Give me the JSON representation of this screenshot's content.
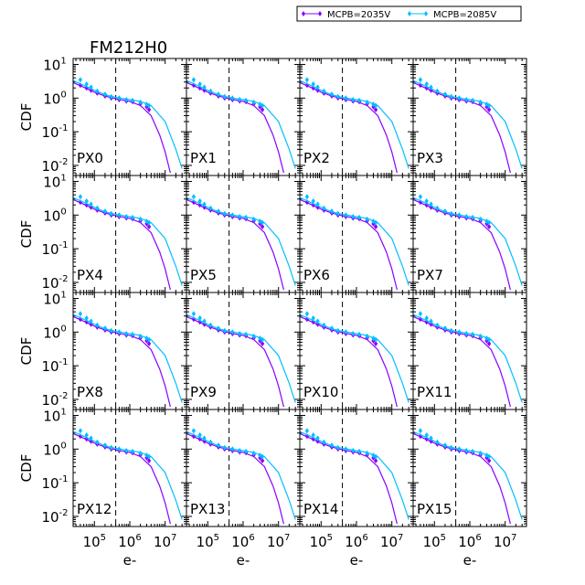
{
  "chart_data": {
    "type": "scatter",
    "title": "FM212H0",
    "xlabel": "e-",
    "ylabel": "CDF",
    "xscale": "log",
    "yscale": "log",
    "xlim": [
      25000,
      40000000
    ],
    "ylim": [
      0.005,
      15
    ],
    "x_ticks": [
      {
        "value": 100000,
        "base": "10",
        "exp": "5"
      },
      {
        "value": 1000000,
        "base": "10",
        "exp": "6"
      },
      {
        "value": 10000000,
        "base": "10",
        "exp": "7"
      }
    ],
    "y_ticks": [
      {
        "value": 10,
        "base": "10",
        "exp": "1"
      },
      {
        "value": 1,
        "base": "10",
        "exp": "0"
      },
      {
        "value": 0.1,
        "base": "10",
        "exp": "-1"
      },
      {
        "value": 0.01,
        "base": "10",
        "exp": "-2"
      }
    ],
    "vertical_line_x": 400000,
    "legend": {
      "placement": "top-right",
      "entries": [
        {
          "label": "MCPB=2035V",
          "color": "#8a00ff"
        },
        {
          "label": "MCPB=2085V",
          "color": "#00bfff"
        }
      ]
    },
    "series": [
      {
        "name": "MCPB=2035V",
        "color": "#8a00ff",
        "points": [
          {
            "x": 40000,
            "y": 2.4
          },
          {
            "x": 60000,
            "y": 2.0
          },
          {
            "x": 80000,
            "y": 1.7
          },
          {
            "x": 120000,
            "y": 1.4
          },
          {
            "x": 200000,
            "y": 1.15
          },
          {
            "x": 300000,
            "y": 1.0
          },
          {
            "x": 500000,
            "y": 0.9
          },
          {
            "x": 800000,
            "y": 0.82
          },
          {
            "x": 1200000,
            "y": 0.78
          },
          {
            "x": 2000000,
            "y": 0.68
          },
          {
            "x": 3000000,
            "y": 0.55
          },
          {
            "x": 3500000,
            "y": 0.45
          }
        ],
        "fit": [
          {
            "x": 25000,
            "y": 2.9
          },
          {
            "x": 50000,
            "y": 2.1
          },
          {
            "x": 100000,
            "y": 1.5
          },
          {
            "x": 200000,
            "y": 1.15
          },
          {
            "x": 400000,
            "y": 0.95
          },
          {
            "x": 1000000,
            "y": 0.8
          },
          {
            "x": 2000000,
            "y": 0.6
          },
          {
            "x": 4000000,
            "y": 0.3
          },
          {
            "x": 7000000,
            "y": 0.08
          },
          {
            "x": 10000000,
            "y": 0.025
          },
          {
            "x": 14000000,
            "y": 0.006
          }
        ]
      },
      {
        "name": "MCPB=2085V",
        "color": "#00bfff",
        "points": [
          {
            "x": 40000,
            "y": 3.5
          },
          {
            "x": 60000,
            "y": 2.6
          },
          {
            "x": 80000,
            "y": 2.1
          },
          {
            "x": 120000,
            "y": 1.6
          },
          {
            "x": 200000,
            "y": 1.3
          },
          {
            "x": 300000,
            "y": 1.1
          },
          {
            "x": 500000,
            "y": 1.0
          },
          {
            "x": 800000,
            "y": 0.9
          },
          {
            "x": 1200000,
            "y": 0.85
          },
          {
            "x": 2000000,
            "y": 0.75
          },
          {
            "x": 3000000,
            "y": 0.65
          },
          {
            "x": 3500000,
            "y": 0.6
          }
        ],
        "fit": [
          {
            "x": 25000,
            "y": 3.3
          },
          {
            "x": 50000,
            "y": 2.4
          },
          {
            "x": 100000,
            "y": 1.7
          },
          {
            "x": 200000,
            "y": 1.25
          },
          {
            "x": 400000,
            "y": 1.05
          },
          {
            "x": 1000000,
            "y": 0.9
          },
          {
            "x": 2000000,
            "y": 0.8
          },
          {
            "x": 4000000,
            "y": 0.6
          },
          {
            "x": 10000000,
            "y": 0.2
          },
          {
            "x": 20000000,
            "y": 0.03
          },
          {
            "x": 30000000,
            "y": 0.008
          }
        ]
      }
    ],
    "panels": [
      {
        "label": "PX0"
      },
      {
        "label": "PX1"
      },
      {
        "label": "PX2"
      },
      {
        "label": "PX3"
      },
      {
        "label": "PX4"
      },
      {
        "label": "PX5"
      },
      {
        "label": "PX6"
      },
      {
        "label": "PX7"
      },
      {
        "label": "PX8"
      },
      {
        "label": "PX9"
      },
      {
        "label": "PX10"
      },
      {
        "label": "PX11"
      },
      {
        "label": "PX12"
      },
      {
        "label": "PX13"
      },
      {
        "label": "PX14"
      },
      {
        "label": "PX15"
      }
    ]
  }
}
